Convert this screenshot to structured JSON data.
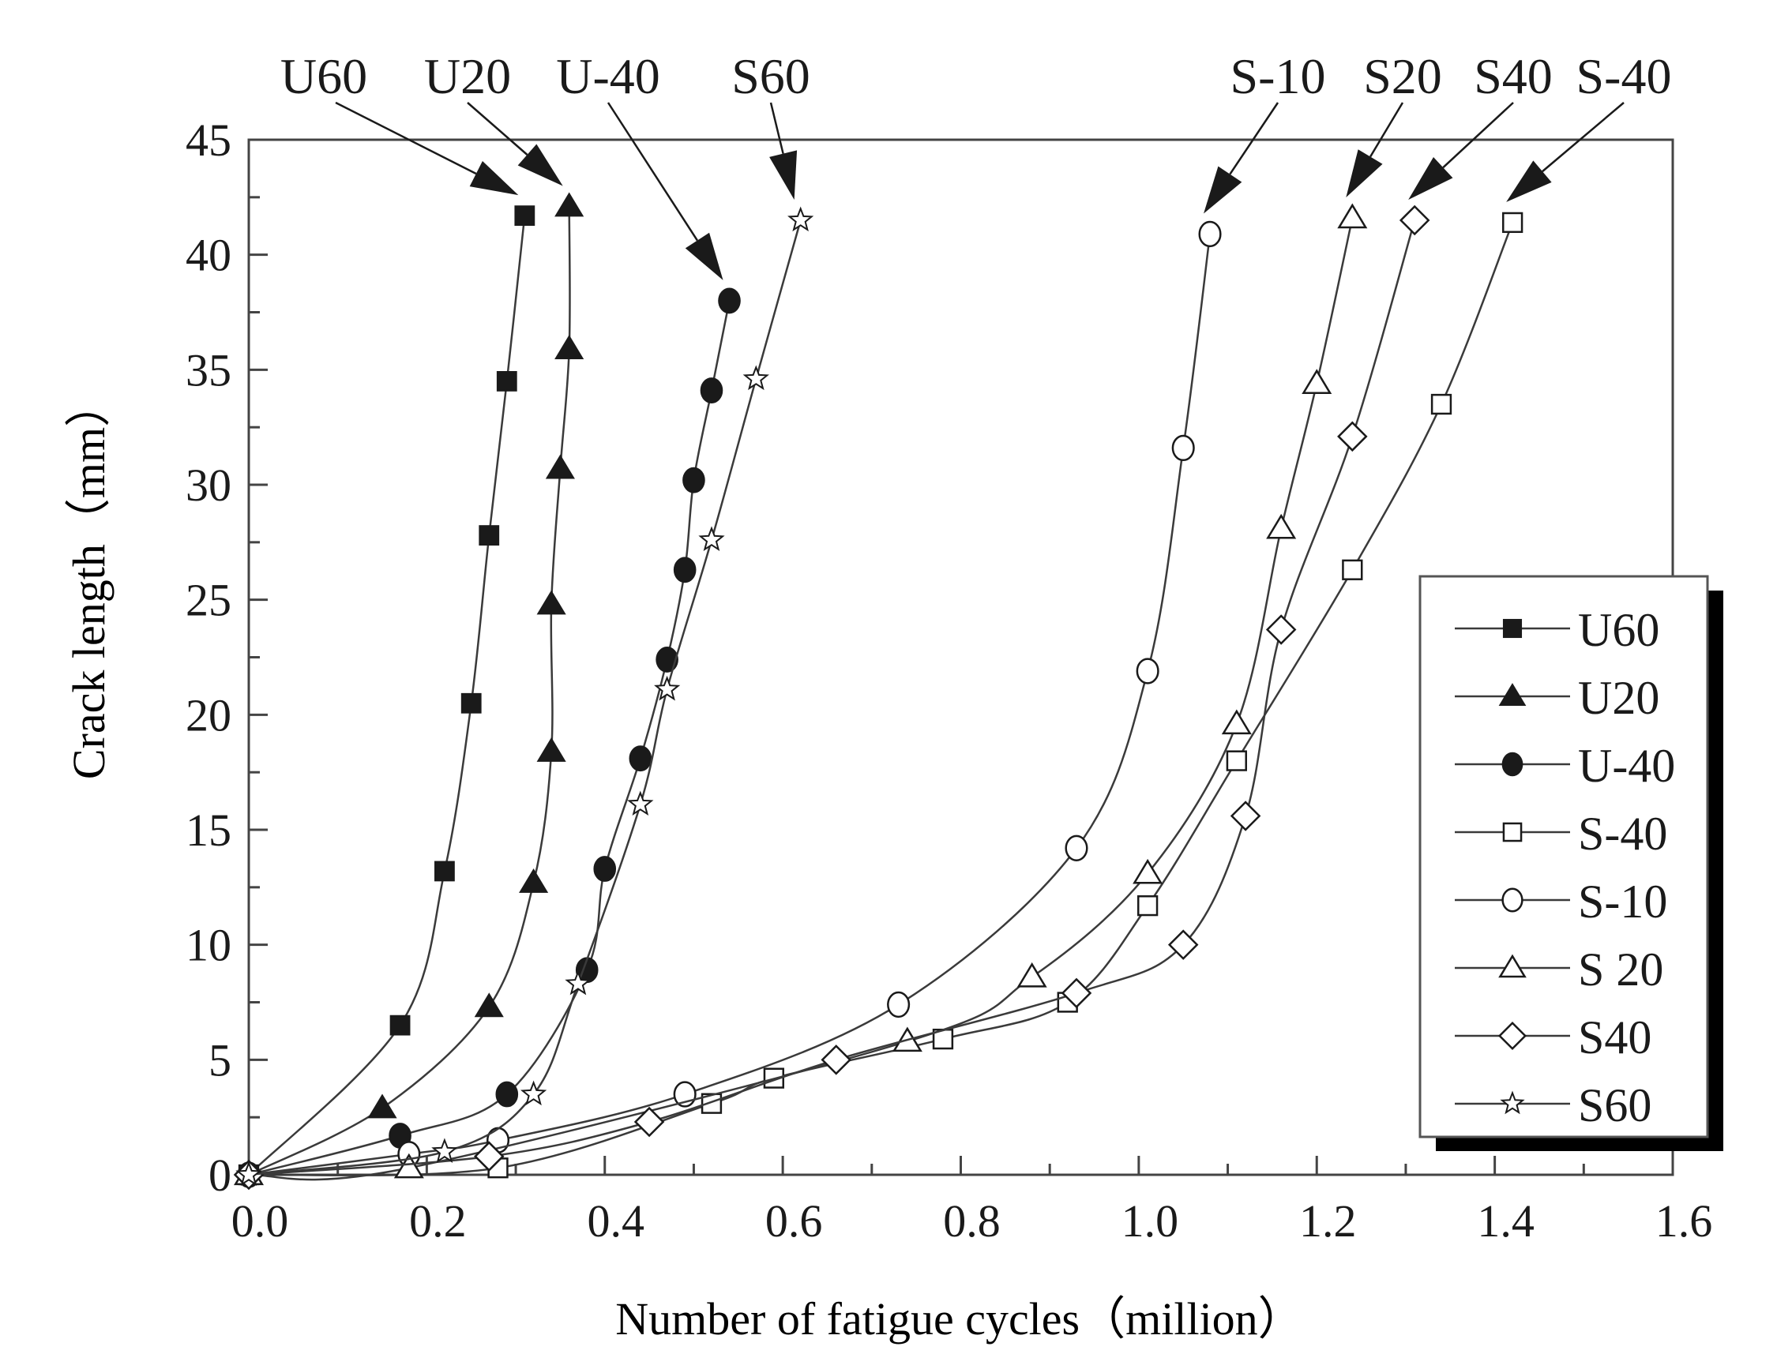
{
  "chart_data": {
    "type": "line",
    "title": "",
    "xlabel": "Number of fatigue cycles（million）",
    "ylabel": "Crack length（mm）",
    "xlim": [
      0.0,
      1.6
    ],
    "ylim": [
      0,
      45
    ],
    "x_ticks": [
      "0.0",
      "0.2",
      "0.4",
      "0.6",
      "0.8",
      "1.0",
      "1.2",
      "1.4",
      "1.6"
    ],
    "y_ticks": [
      "0",
      "5",
      "10",
      "15",
      "20",
      "25",
      "30",
      "35",
      "40",
      "45"
    ],
    "grid": false,
    "legend_position": "lower right (inside, with drop shadow)",
    "series": [
      {
        "name": "U60",
        "marker": "filled-square",
        "x": [
          0.0,
          0.17,
          0.22,
          0.25,
          0.27,
          0.29,
          0.31
        ],
        "y": [
          0.0,
          6.5,
          13.2,
          20.5,
          27.8,
          34.5,
          41.7
        ]
      },
      {
        "name": "U20",
        "marker": "filled-triangle",
        "x": [
          0.0,
          0.15,
          0.27,
          0.32,
          0.34,
          0.34,
          0.35,
          0.36,
          0.36
        ],
        "y": [
          0.0,
          2.9,
          7.3,
          12.7,
          18.4,
          24.8,
          30.7,
          35.9,
          42.1
        ]
      },
      {
        "name": "U-40",
        "marker": "filled-circle",
        "x": [
          0.0,
          0.17,
          0.29,
          0.38,
          0.4,
          0.44,
          0.47,
          0.49,
          0.5,
          0.52,
          0.54
        ],
        "y": [
          0.0,
          1.7,
          3.5,
          8.9,
          13.3,
          18.1,
          22.4,
          26.3,
          30.2,
          34.1,
          38.0
        ]
      },
      {
        "name": "S-40",
        "marker": "open-square",
        "x": [
          0.0,
          0.28,
          0.52,
          0.59,
          0.78,
          0.92,
          1.01,
          1.11,
          1.24,
          1.34,
          1.42
        ],
        "y": [
          0.0,
          0.3,
          3.1,
          4.2,
          5.9,
          7.5,
          11.7,
          18.0,
          26.3,
          33.5,
          41.4
        ]
      },
      {
        "name": "S-10",
        "marker": "open-circle",
        "x": [
          0.0,
          0.18,
          0.28,
          0.49,
          0.73,
          0.93,
          1.01,
          1.05,
          1.08
        ],
        "y": [
          0.0,
          0.9,
          1.5,
          3.5,
          7.4,
          14.2,
          21.9,
          31.6,
          40.9
        ]
      },
      {
        "name": "S20",
        "marker": "open-triangle",
        "x": [
          0.0,
          0.18,
          0.74,
          0.88,
          1.01,
          1.11,
          1.16,
          1.2,
          1.24
        ],
        "y": [
          0.0,
          0.3,
          5.8,
          8.6,
          13.1,
          19.6,
          28.1,
          34.4,
          41.6
        ]
      },
      {
        "name": "S40",
        "marker": "open-diamond",
        "x": [
          0.0,
          0.27,
          0.45,
          0.66,
          0.93,
          1.05,
          1.12,
          1.16,
          1.24,
          1.31
        ],
        "y": [
          0.0,
          0.8,
          2.3,
          5.0,
          7.9,
          10.0,
          15.6,
          23.7,
          32.1,
          41.5
        ]
      },
      {
        "name": "S60",
        "marker": "open-star",
        "x": [
          0.0,
          0.22,
          0.32,
          0.37,
          0.44,
          0.47,
          0.52,
          0.57,
          0.62
        ],
        "y": [
          0.0,
          1.0,
          3.5,
          8.3,
          16.1,
          21.1,
          27.6,
          34.6,
          41.5
        ]
      }
    ],
    "annotations": [
      {
        "text": "U60",
        "points_to_series": "U60"
      },
      {
        "text": "U20",
        "points_to_series": "U20"
      },
      {
        "text": "U-40",
        "points_to_series": "U-40"
      },
      {
        "text": "S60",
        "points_to_series": "S60"
      },
      {
        "text": "S-10",
        "points_to_series": "S-10"
      },
      {
        "text": "S20",
        "points_to_series": "S20"
      },
      {
        "text": "S40",
        "points_to_series": "S40"
      },
      {
        "text": "S-40",
        "points_to_series": "S-40"
      }
    ],
    "legend_entries": [
      "U60",
      "U20",
      "U-40",
      "S-40",
      "S-10",
      "S 20",
      "S40",
      "S60"
    ]
  },
  "colors": {
    "ink": "#1a1a1a",
    "line": "#3a3a3a",
    "background": "#ffffff"
  }
}
